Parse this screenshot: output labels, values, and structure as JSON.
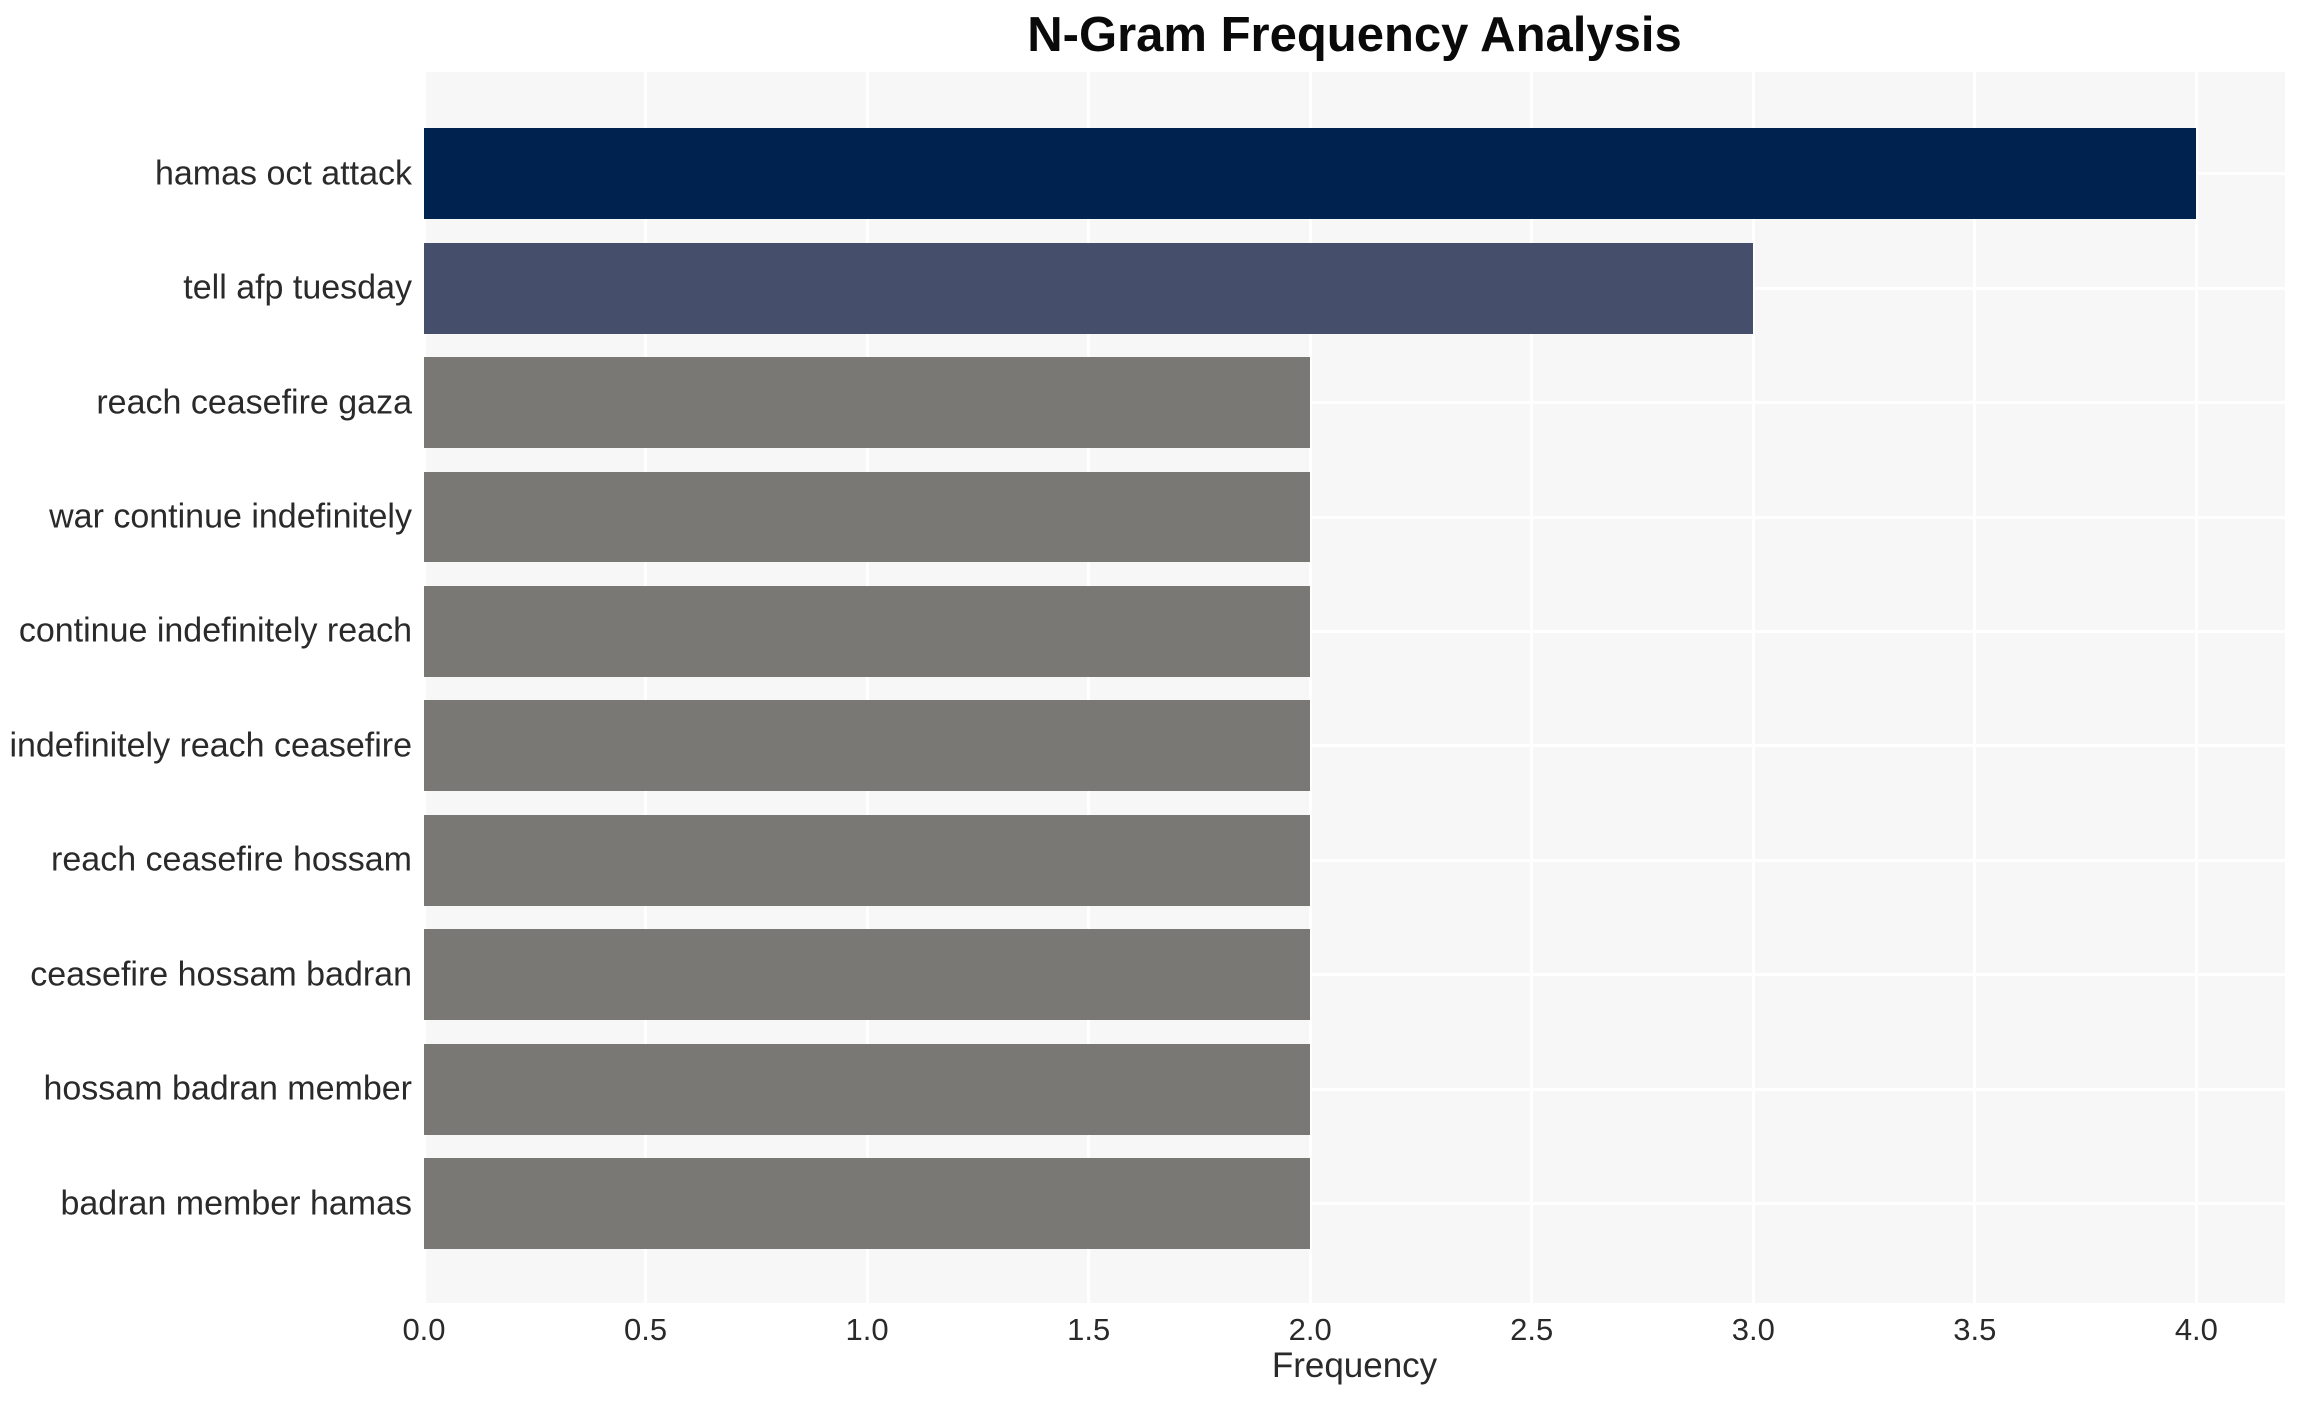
{
  "chart_data": {
    "type": "bar",
    "orientation": "horizontal",
    "title": "N-Gram Frequency Analysis",
    "xlabel": "Frequency",
    "ylabel": "",
    "categories": [
      "hamas oct attack",
      "tell afp tuesday",
      "reach ceasefire gaza",
      "war continue indefinitely",
      "continue indefinitely reach",
      "indefinitely reach ceasefire",
      "reach ceasefire hossam",
      "ceasefire hossam badran",
      "hossam badran member",
      "badran member hamas"
    ],
    "values": [
      4,
      3,
      2,
      2,
      2,
      2,
      2,
      2,
      2,
      2
    ],
    "bar_colors": [
      "#00224E",
      "#454F6B",
      "#7A7875",
      "#7A7875",
      "#7A7875",
      "#7A7875",
      "#7A7875",
      "#7A7875",
      "#7A7875",
      "#7A7875"
    ],
    "xlim": [
      0,
      4.2
    ],
    "xticks": [
      "0.0",
      "0.5",
      "1.0",
      "1.5",
      "2.0",
      "2.5",
      "3.0",
      "3.5",
      "4.0"
    ],
    "grid": {
      "vertical": true,
      "horizontal": true,
      "color": "#FFFFFF"
    },
    "legend": "none",
    "plot_bg": "#F7F7F7",
    "page_bg": "#FFFFFF",
    "layout": {
      "first_center_pct": 8.25,
      "step_pct": 9.3,
      "bar_height_pct": 7.39
    }
  }
}
